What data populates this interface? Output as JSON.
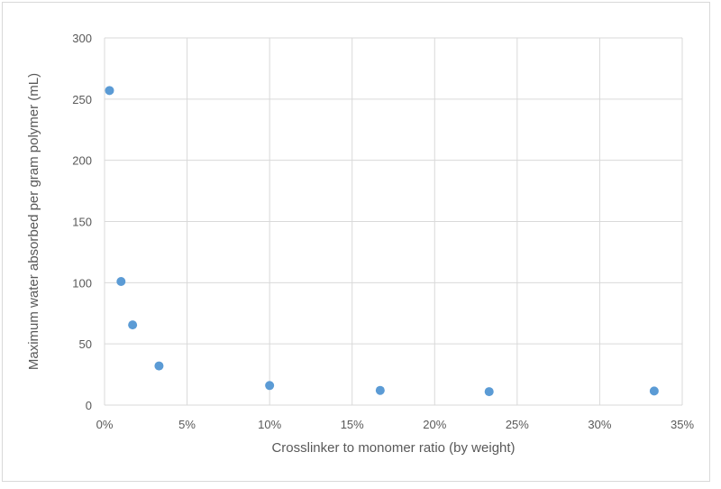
{
  "chart_data": {
    "type": "scatter",
    "title": "",
    "xlabel": "Crosslinker to monomer ratio (by weight)",
    "ylabel": "Maximum water absorbed per gram polymer (mL)",
    "xlim": [
      0,
      0.35
    ],
    "ylim": [
      0,
      300
    ],
    "x_ticks": [
      0,
      0.05,
      0.1,
      0.15,
      0.2,
      0.25,
      0.3,
      0.35
    ],
    "x_tick_labels": [
      "0%",
      "5%",
      "10%",
      "15%",
      "20%",
      "25%",
      "30%",
      "35%"
    ],
    "y_ticks": [
      0,
      50,
      100,
      150,
      200,
      250,
      300
    ],
    "y_tick_labels": [
      "0",
      "50",
      "100",
      "150",
      "200",
      "250",
      "300"
    ],
    "grid": true,
    "legend": "none",
    "series": [
      {
        "color": "#5b9bd5",
        "x": [
          0.003,
          0.01,
          0.017,
          0.033,
          0.1,
          0.167,
          0.233,
          0.333
        ],
        "y": [
          257,
          101,
          65.5,
          32,
          16,
          12,
          11,
          11.5
        ]
      }
    ]
  },
  "colors": {
    "grid": "#d9d9d9",
    "text": "#595959",
    "marker": "#5b9bd5"
  }
}
